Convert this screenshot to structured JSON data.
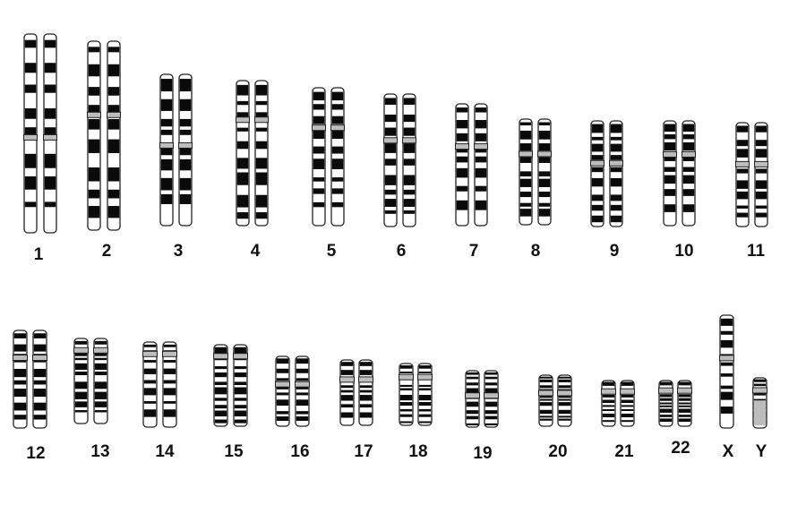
{
  "karyotype": {
    "colors": {
      "outline": "#222222",
      "dark": "#0a0a0a",
      "light": "#ffffff",
      "centromere": "#bdbdbd"
    },
    "chromosomes": [
      {
        "label": "1",
        "pair": true
      },
      {
        "label": "2",
        "pair": true
      },
      {
        "label": "3",
        "pair": true
      },
      {
        "label": "4",
        "pair": true
      },
      {
        "label": "5",
        "pair": true
      },
      {
        "label": "6",
        "pair": true
      },
      {
        "label": "7",
        "pair": true
      },
      {
        "label": "8",
        "pair": true
      },
      {
        "label": "9",
        "pair": true
      },
      {
        "label": "10",
        "pair": true
      },
      {
        "label": "11",
        "pair": true
      },
      {
        "label": "12",
        "pair": true
      },
      {
        "label": "13",
        "pair": true
      },
      {
        "label": "14",
        "pair": true
      },
      {
        "label": "15",
        "pair": true
      },
      {
        "label": "16",
        "pair": true
      },
      {
        "label": "17",
        "pair": true
      },
      {
        "label": "18",
        "pair": true
      },
      {
        "label": "19",
        "pair": true
      },
      {
        "label": "20",
        "pair": true
      },
      {
        "label": "21",
        "pair": true
      },
      {
        "label": "22",
        "pair": true
      },
      {
        "label": "X",
        "pair": false
      },
      {
        "label": "Y",
        "pair": false
      }
    ]
  }
}
